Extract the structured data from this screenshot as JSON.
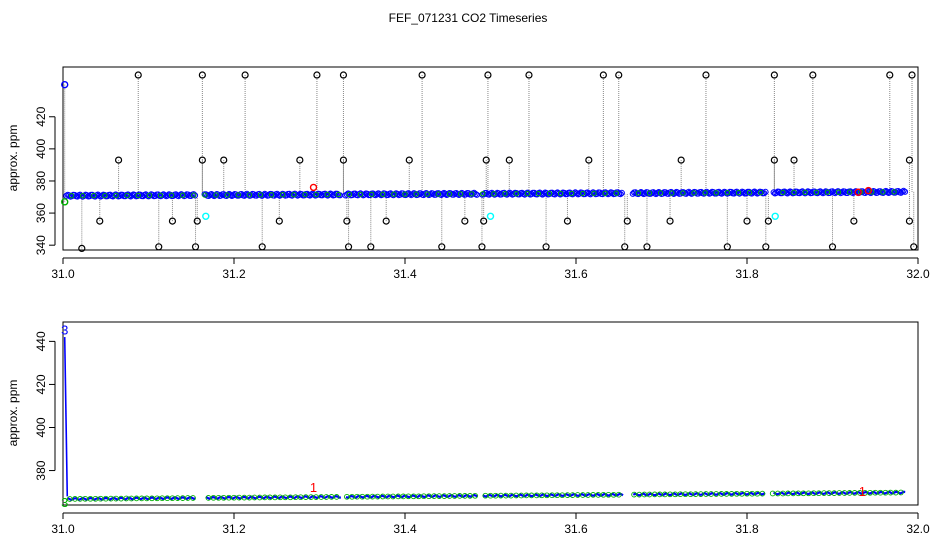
{
  "title": "FEF_071231  CO2 Timeseries",
  "colors": {
    "frame": "#000000",
    "black_points": "#000000",
    "blue_points": "#0000ff",
    "green_points": "#00b000",
    "cyan_points": "#00ffff",
    "red_points": "#ff0000",
    "drop_lines": "#888888"
  },
  "chart_data": [
    {
      "type": "scatter",
      "ylabel": "approx. ppm",
      "xlim": [
        31.0,
        32.0
      ],
      "ylim": [
        337,
        451
      ],
      "xticks": [
        "31.0",
        "31.2",
        "31.4",
        "31.6",
        "31.8",
        "32.0"
      ],
      "xtick_values": [
        31.0,
        31.2,
        31.4,
        31.6,
        31.8,
        32.0
      ],
      "yticks": [
        "340",
        "360",
        "380",
        "400",
        "420"
      ],
      "ytick_values": [
        340,
        360,
        380,
        400,
        420
      ],
      "gaps": [
        [
          31.155,
          31.165
        ],
        [
          31.325,
          31.33
        ],
        [
          31.485,
          31.49
        ],
        [
          31.655,
          31.665
        ],
        [
          31.822,
          31.83
        ]
      ],
      "main_series": {
        "name": "",
        "y_start": 370.8,
        "y_end": 373.2,
        "x_start": 31.0,
        "x_end": 31.985
      },
      "upper_spikes_y": 446,
      "upper_spikes_x": [
        31.088,
        31.163,
        31.213,
        31.297,
        31.328,
        31.42,
        31.497,
        31.545,
        31.632,
        31.65,
        31.752,
        31.832,
        31.877,
        31.967,
        31.993
      ],
      "lower_spikes": [
        {
          "x": 31.022,
          "y": 338
        },
        {
          "x": 31.043,
          "y": 355
        },
        {
          "x": 31.112,
          "y": 339
        },
        {
          "x": 31.128,
          "y": 355
        },
        {
          "x": 31.155,
          "y": 339
        },
        {
          "x": 31.157,
          "y": 355
        },
        {
          "x": 31.233,
          "y": 339
        },
        {
          "x": 31.253,
          "y": 355
        },
        {
          "x": 31.332,
          "y": 355
        },
        {
          "x": 31.334,
          "y": 339
        },
        {
          "x": 31.36,
          "y": 339
        },
        {
          "x": 31.378,
          "y": 355
        },
        {
          "x": 31.443,
          "y": 339
        },
        {
          "x": 31.47,
          "y": 355
        },
        {
          "x": 31.49,
          "y": 339
        },
        {
          "x": 31.492,
          "y": 355
        },
        {
          "x": 31.565,
          "y": 339
        },
        {
          "x": 31.59,
          "y": 355
        },
        {
          "x": 31.657,
          "y": 339
        },
        {
          "x": 31.66,
          "y": 355
        },
        {
          "x": 31.683,
          "y": 339
        },
        {
          "x": 31.71,
          "y": 355
        },
        {
          "x": 31.777,
          "y": 339
        },
        {
          "x": 31.8,
          "y": 355
        },
        {
          "x": 31.822,
          "y": 339
        },
        {
          "x": 31.825,
          "y": 355
        },
        {
          "x": 31.9,
          "y": 339
        },
        {
          "x": 31.925,
          "y": 355
        },
        {
          "x": 31.99,
          "y": 355
        },
        {
          "x": 31.995,
          "y": 339
        }
      ],
      "mid_spikes": [
        {
          "x": 31.065,
          "y": 393
        },
        {
          "x": 31.163,
          "y": 393
        },
        {
          "x": 31.188,
          "y": 393
        },
        {
          "x": 31.277,
          "y": 393
        },
        {
          "x": 31.328,
          "y": 393
        },
        {
          "x": 31.405,
          "y": 393
        },
        {
          "x": 31.495,
          "y": 393
        },
        {
          "x": 31.522,
          "y": 393
        },
        {
          "x": 31.615,
          "y": 393
        },
        {
          "x": 31.723,
          "y": 393
        },
        {
          "x": 31.832,
          "y": 393
        },
        {
          "x": 31.855,
          "y": 393
        },
        {
          "x": 31.99,
          "y": 393
        }
      ],
      "blue_start": {
        "x": 31.002,
        "y": 440
      },
      "green_start": {
        "x": 31.002,
        "y": 367
      },
      "cyan_points": [
        {
          "x": 31.167,
          "y": 358
        },
        {
          "x": 31.5,
          "y": 358
        },
        {
          "x": 31.833,
          "y": 358
        }
      ],
      "red_points": [
        {
          "x": 31.293,
          "y": 376
        },
        {
          "x": 31.93,
          "y": 373
        },
        {
          "x": 31.942,
          "y": 374
        }
      ]
    },
    {
      "type": "line",
      "ylabel": "approx. ppm",
      "xlim": [
        31.0,
        32.0
      ],
      "ylim": [
        364,
        449
      ],
      "xticks": [
        "31.0",
        "31.2",
        "31.4",
        "31.6",
        "31.8",
        "32.0"
      ],
      "xtick_values": [
        31.0,
        31.2,
        31.4,
        31.6,
        31.8,
        32.0
      ],
      "yticks": [
        "380",
        "400",
        "420",
        "440"
      ],
      "ytick_values": [
        380,
        400,
        420,
        440
      ],
      "gaps": [
        [
          31.155,
          31.165
        ],
        [
          31.325,
          31.33
        ],
        [
          31.485,
          31.49
        ],
        [
          31.655,
          31.665
        ],
        [
          31.822,
          31.83
        ]
      ],
      "main_series": {
        "name": "",
        "y_start": 366.8,
        "y_end": 369.8,
        "x_start": 31.005,
        "x_end": 31.985
      },
      "spike": {
        "x": 31.002,
        "y_top": 442,
        "y_bottom": 368
      },
      "labels": [
        {
          "text": "3",
          "x": 31.002,
          "y": 445,
          "color": "#0000ff"
        },
        {
          "text": "3",
          "x": 31.002,
          "y": 365,
          "color": "#00b000"
        },
        {
          "text": "1",
          "x": 31.293,
          "y": 372,
          "color": "#ff0000"
        },
        {
          "text": "1",
          "x": 31.935,
          "y": 370,
          "color": "#ff0000"
        }
      ]
    }
  ]
}
